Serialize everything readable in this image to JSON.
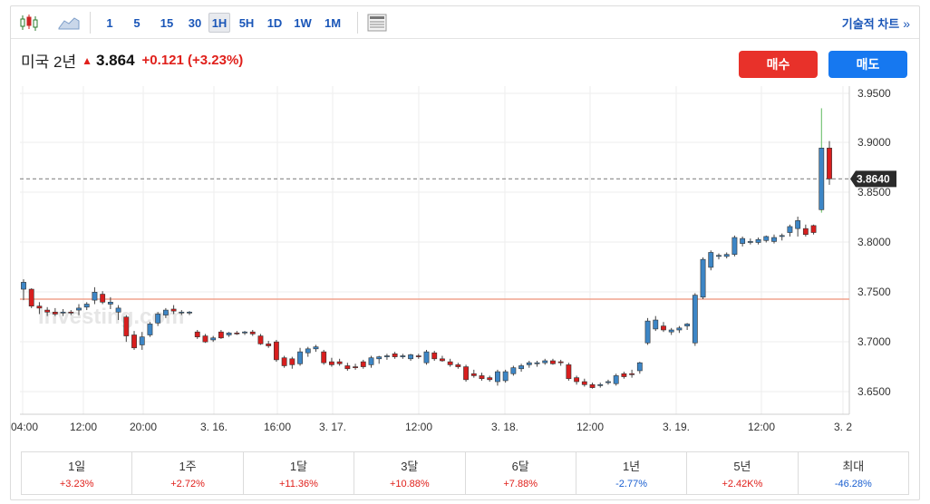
{
  "toolbar": {
    "candle_icon": "candlestick-icon",
    "area_icon": "area-chart-icon",
    "timeframes": [
      "1",
      "5",
      "15",
      "30",
      "1H",
      "5H",
      "1D",
      "1W",
      "1M"
    ],
    "active_timeframe": "1H",
    "table_icon": "data-table-icon",
    "tech_link": "기술적 차트",
    "tech_chevron": "»"
  },
  "quote": {
    "name": "미국 2년",
    "price": "3.864",
    "change": "+0.121 (+3.23%)"
  },
  "buttons": {
    "buy": "매수",
    "sell": "매도"
  },
  "colors": {
    "up": "#e0201b",
    "down": "#1a5fd0",
    "candle_up": "#3d86c6",
    "candle_down": "#d81e1e",
    "buy": "#e8312a",
    "sell": "#1678f0"
  },
  "chart_data": {
    "type": "candlestick",
    "watermark": "Investing.com",
    "ylim": [
      3.62,
      3.97
    ],
    "y_ticks": [
      "3.6500",
      "3.7000",
      "3.7500",
      "3.8000",
      "3.8500",
      "3.9000",
      "3.9500"
    ],
    "x_ticks": [
      "04:00",
      "12:00",
      "20:00",
      "3. 16.",
      "16:00",
      "3. 17.",
      "12:00",
      "3. 18.",
      "12:00",
      "3. 19.",
      "12:00",
      "3. 2"
    ],
    "current_price_label": "3.8640",
    "current_price": 3.864,
    "reference_line": 3.743,
    "grid": true,
    "candles": [
      [
        3.753,
        3.763,
        3.742,
        3.76
      ],
      [
        3.753,
        3.754,
        3.734,
        3.736
      ],
      [
        3.736,
        3.74,
        3.728,
        3.734
      ],
      [
        3.732,
        3.735,
        3.726,
        3.73
      ],
      [
        3.73,
        3.734,
        3.726,
        3.728
      ],
      [
        3.729,
        3.733,
        3.726,
        3.73
      ],
      [
        3.73,
        3.732,
        3.727,
        3.729
      ],
      [
        3.732,
        3.738,
        3.727,
        3.734
      ],
      [
        3.735,
        3.74,
        3.732,
        3.738
      ],
      [
        3.742,
        3.755,
        3.738,
        3.75
      ],
      [
        3.748,
        3.751,
        3.738,
        3.74
      ],
      [
        3.738,
        3.745,
        3.733,
        3.74
      ],
      [
        3.73,
        3.737,
        3.722,
        3.734
      ],
      [
        3.725,
        3.727,
        3.7,
        3.706
      ],
      [
        3.707,
        3.711,
        3.692,
        3.694
      ],
      [
        3.697,
        3.71,
        3.692,
        3.705
      ],
      [
        3.707,
        3.72,
        3.705,
        3.718
      ],
      [
        3.719,
        3.73,
        3.716,
        3.728
      ],
      [
        3.727,
        3.734,
        3.724,
        3.732
      ],
      [
        3.733,
        3.737,
        3.728,
        3.731
      ],
      [
        3.73,
        3.732,
        3.727,
        3.73
      ],
      [
        3.729,
        3.731,
        3.727,
        3.73
      ],
      [
        3.71,
        3.712,
        3.703,
        3.705
      ],
      [
        3.706,
        3.708,
        3.699,
        3.7
      ],
      [
        3.702,
        3.706,
        3.7,
        3.704
      ],
      [
        3.71,
        3.712,
        3.703,
        3.704
      ],
      [
        3.707,
        3.71,
        3.705,
        3.709
      ],
      [
        3.709,
        3.711,
        3.707,
        3.708
      ],
      [
        3.709,
        3.711,
        3.707,
        3.71
      ],
      [
        3.71,
        3.712,
        3.706,
        3.708
      ],
      [
        3.706,
        3.708,
        3.697,
        3.698
      ],
      [
        3.698,
        3.701,
        3.694,
        3.696
      ],
      [
        3.7,
        3.702,
        3.68,
        3.682
      ],
      [
        3.684,
        3.686,
        3.674,
        3.676
      ],
      [
        3.683,
        3.685,
        3.673,
        3.677
      ],
      [
        3.678,
        3.694,
        3.676,
        3.69
      ],
      [
        3.689,
        3.695,
        3.685,
        3.693
      ],
      [
        3.693,
        3.697,
        3.69,
        3.695
      ],
      [
        3.69,
        3.692,
        3.677,
        3.679
      ],
      [
        3.68,
        3.684,
        3.675,
        3.677
      ],
      [
        3.68,
        3.683,
        3.676,
        3.678
      ],
      [
        3.676,
        3.679,
        3.671,
        3.673
      ],
      [
        3.675,
        3.678,
        3.672,
        3.674
      ],
      [
        3.68,
        3.682,
        3.673,
        3.675
      ],
      [
        3.677,
        3.686,
        3.674,
        3.684
      ],
      [
        3.683,
        3.686,
        3.678,
        3.685
      ],
      [
        3.685,
        3.688,
        3.682,
        3.686
      ],
      [
        3.688,
        3.69,
        3.683,
        3.685
      ],
      [
        3.685,
        3.688,
        3.683,
        3.686
      ],
      [
        3.683,
        3.688,
        3.681,
        3.687
      ],
      [
        3.686,
        3.688,
        3.683,
        3.685
      ],
      [
        3.679,
        3.692,
        3.677,
        3.69
      ],
      [
        3.689,
        3.691,
        3.681,
        3.683
      ],
      [
        3.683,
        3.686,
        3.68,
        3.681
      ],
      [
        3.68,
        3.683,
        3.675,
        3.677
      ],
      [
        3.677,
        3.679,
        3.673,
        3.675
      ],
      [
        3.675,
        3.677,
        3.66,
        3.662
      ],
      [
        3.668,
        3.672,
        3.664,
        3.666
      ],
      [
        3.666,
        3.669,
        3.661,
        3.663
      ],
      [
        3.664,
        3.666,
        3.66,
        3.662
      ],
      [
        3.66,
        3.672,
        3.656,
        3.67
      ],
      [
        3.661,
        3.672,
        3.659,
        3.67
      ],
      [
        3.668,
        3.676,
        3.666,
        3.674
      ],
      [
        3.673,
        3.678,
        3.67,
        3.676
      ],
      [
        3.677,
        3.681,
        3.674,
        3.679
      ],
      [
        3.678,
        3.681,
        3.675,
        3.679
      ],
      [
        3.679,
        3.683,
        3.677,
        3.681
      ],
      [
        3.681,
        3.683,
        3.677,
        3.678
      ],
      [
        3.68,
        3.682,
        3.676,
        3.679
      ],
      [
        3.677,
        3.679,
        3.661,
        3.663
      ],
      [
        3.664,
        3.666,
        3.657,
        3.66
      ],
      [
        3.66,
        3.663,
        3.655,
        3.657
      ],
      [
        3.657,
        3.659,
        3.653,
        3.654
      ],
      [
        3.656,
        3.659,
        3.654,
        3.657
      ],
      [
        3.659,
        3.662,
        3.657,
        3.66
      ],
      [
        3.658,
        3.668,
        3.656,
        3.666
      ],
      [
        3.668,
        3.67,
        3.663,
        3.665
      ],
      [
        3.668,
        3.672,
        3.664,
        3.667
      ],
      [
        3.671,
        3.68,
        3.668,
        3.679
      ],
      [
        3.699,
        3.724,
        3.697,
        3.721
      ],
      [
        3.713,
        3.726,
        3.711,
        3.722
      ],
      [
        3.716,
        3.72,
        3.71,
        3.712
      ],
      [
        3.71,
        3.714,
        3.707,
        3.712
      ],
      [
        3.712,
        3.716,
        3.709,
        3.714
      ],
      [
        3.716,
        3.719,
        3.712,
        3.718
      ],
      [
        3.699,
        3.749,
        3.696,
        3.747
      ],
      [
        3.745,
        3.785,
        3.743,
        3.783
      ],
      [
        3.775,
        3.792,
        3.772,
        3.79
      ],
      [
        3.786,
        3.789,
        3.783,
        3.787
      ],
      [
        3.786,
        3.79,
        3.784,
        3.788
      ],
      [
        3.788,
        3.807,
        3.786,
        3.805
      ],
      [
        3.799,
        3.806,
        3.796,
        3.804
      ],
      [
        3.8,
        3.804,
        3.798,
        3.801
      ],
      [
        3.8,
        3.805,
        3.798,
        3.803
      ],
      [
        3.802,
        3.807,
        3.8,
        3.806
      ],
      [
        3.801,
        3.808,
        3.799,
        3.805
      ],
      [
        3.806,
        3.809,
        3.802,
        3.807
      ],
      [
        3.81,
        3.818,
        3.806,
        3.816
      ],
      [
        3.814,
        3.826,
        3.806,
        3.822
      ],
      [
        3.814,
        3.818,
        3.806,
        3.808
      ],
      [
        3.817,
        3.818,
        3.808,
        3.81
      ],
      [
        3.833,
        3.935,
        3.83,
        3.895
      ],
      [
        3.895,
        3.902,
        3.858,
        3.864
      ]
    ]
  },
  "performance": [
    {
      "label": "1일",
      "value": "+3.23%",
      "dir": "up"
    },
    {
      "label": "1주",
      "value": "+2.72%",
      "dir": "up"
    },
    {
      "label": "1달",
      "value": "+11.36%",
      "dir": "up"
    },
    {
      "label": "3달",
      "value": "+10.88%",
      "dir": "up"
    },
    {
      "label": "6달",
      "value": "+7.88%",
      "dir": "up"
    },
    {
      "label": "1년",
      "value": "-2.77%",
      "dir": "down"
    },
    {
      "label": "5년",
      "value": "+2.42K%",
      "dir": "up"
    },
    {
      "label": "최대",
      "value": "-46.28%",
      "dir": "down"
    }
  ]
}
